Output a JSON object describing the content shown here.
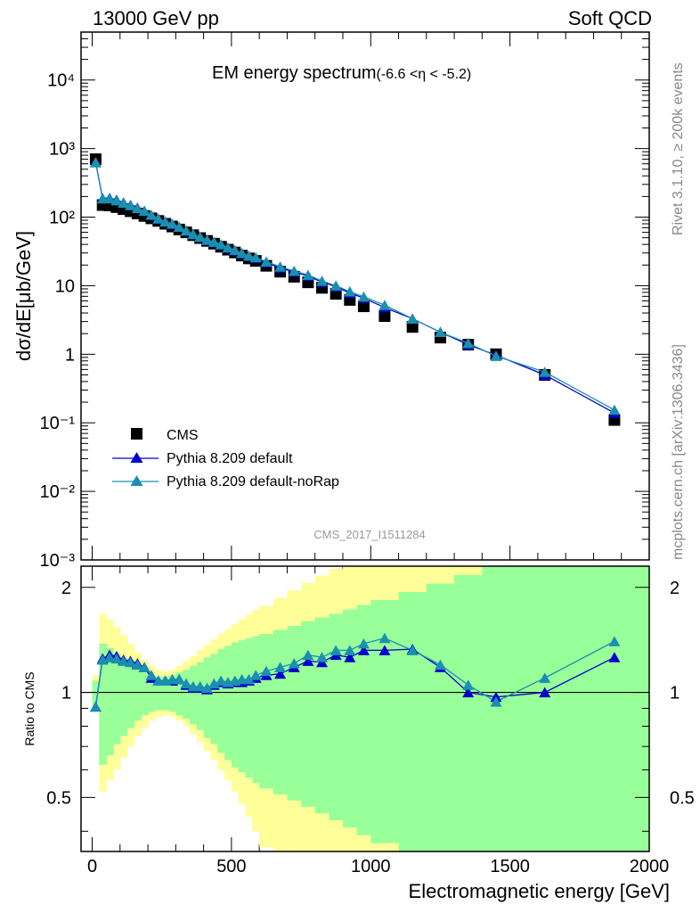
{
  "header": {
    "left": "13000 GeV pp",
    "right": "Soft QCD"
  },
  "side_labels": {
    "rivet": "Rivet 3.1.10, ≥ 200k events",
    "site": "mcplots.cern.ch [arXiv:1306.3436]"
  },
  "chart_data": {
    "type": "scatter",
    "title": "EM energy spectrum",
    "title_suffix": "(-6.6 <η < -5.2)",
    "analysis_id": "CMS_2017_I1511284",
    "xlabel": "Electromagnetic energy [GeV]",
    "ylabel": "dσ/dE[μb/GeV]",
    "ratio_ylabel": "Ratio to CMS",
    "xlim": [
      -40,
      2000
    ],
    "ylim": [
      0.001,
      50000
    ],
    "yscale": "log",
    "ratio_ylim": [
      0.35,
      2.3
    ],
    "x_ticks": [
      "0",
      "500",
      "1000",
      "1500",
      "2000"
    ],
    "y_ticks": [
      "10⁻³",
      "10⁻²",
      "10⁻¹",
      "1",
      "10",
      "10²",
      "10³",
      "10⁴"
    ],
    "ratio_ticks": [
      "0.5",
      "1",
      "2"
    ],
    "legend_position": "bottom-left",
    "colors": {
      "CMS": "#000000",
      "default": "#0000cc",
      "noRap": "#1a8fb0",
      "band_inner": "#99ff99",
      "band_outer": "#ffff99"
    },
    "series": [
      {
        "name": "CMS",
        "marker": "square",
        "x": [
          12.5,
          37.5,
          62.5,
          87.5,
          112.5,
          137.5,
          162.5,
          187.5,
          212.5,
          237.5,
          262.5,
          287.5,
          312.5,
          337.5,
          362.5,
          387.5,
          412.5,
          437.5,
          462.5,
          487.5,
          512.5,
          537.5,
          562.5,
          587.5,
          625,
          675,
          725,
          775,
          825,
          875,
          925,
          975,
          1050,
          1150,
          1250,
          1350,
          1450,
          1625,
          1875
        ],
        "y": [
          700,
          150,
          148,
          140,
          131,
          122,
          113,
          104,
          96,
          88,
          80,
          73,
          66,
          60,
          54.5,
          49.5,
          45,
          41,
          37,
          33.5,
          30.5,
          27.5,
          25,
          23,
          19.5,
          16,
          13.5,
          11.2,
          9.3,
          7.6,
          6.2,
          5.0,
          3.6,
          2.5,
          1.75,
          1.38,
          1.0,
          0.5,
          0.11
        ]
      },
      {
        "name": "Pythia 8.209 default",
        "marker": "triangle",
        "x": [
          12.5,
          37.5,
          62.5,
          87.5,
          112.5,
          137.5,
          162.5,
          187.5,
          212.5,
          237.5,
          262.5,
          287.5,
          312.5,
          337.5,
          362.5,
          387.5,
          412.5,
          437.5,
          462.5,
          487.5,
          512.5,
          537.5,
          562.5,
          587.5,
          625,
          675,
          725,
          775,
          825,
          875,
          925,
          975,
          1050,
          1150,
          1250,
          1350,
          1450,
          1625,
          1875
        ],
        "y": [
          630,
          188,
          190,
          178,
          163,
          150,
          137,
          123,
          106,
          95,
          86,
          79,
          72,
          63,
          56,
          51,
          46,
          43,
          39.5,
          35.5,
          32.5,
          29.5,
          27.0,
          25.3,
          21.8,
          18.1,
          15.9,
          13.8,
          11.3,
          9.7,
          7.8,
          6.6,
          4.8,
          3.3,
          2.1,
          1.38,
          0.97,
          0.5,
          0.139
        ],
        "ratio": [
          0.91,
          1.25,
          1.28,
          1.27,
          1.24,
          1.23,
          1.21,
          1.18,
          1.1,
          1.08,
          1.08,
          1.08,
          1.09,
          1.05,
          1.03,
          1.03,
          1.02,
          1.05,
          1.07,
          1.06,
          1.07,
          1.07,
          1.08,
          1.1,
          1.12,
          1.13,
          1.18,
          1.23,
          1.22,
          1.28,
          1.26,
          1.32,
          1.32,
          1.33,
          1.18,
          1.0,
          0.97,
          1.0,
          1.26
        ]
      },
      {
        "name": "Pythia 8.209 default-noRap",
        "marker": "triangle",
        "x": [
          12.5,
          37.5,
          62.5,
          87.5,
          112.5,
          137.5,
          162.5,
          187.5,
          212.5,
          237.5,
          262.5,
          287.5,
          312.5,
          337.5,
          362.5,
          387.5,
          412.5,
          437.5,
          462.5,
          487.5,
          512.5,
          537.5,
          562.5,
          587.5,
          625,
          675,
          725,
          775,
          825,
          875,
          925,
          975,
          1050,
          1150,
          1250,
          1350,
          1450,
          1625,
          1875
        ],
        "y": [
          630,
          186,
          187,
          175,
          161,
          149,
          135,
          123,
          108,
          95,
          86,
          80,
          72,
          63.5,
          56.5,
          51.5,
          46.5,
          43.5,
          40,
          36,
          33,
          29.9,
          27.3,
          25.8,
          22.4,
          18.9,
          16.4,
          14.3,
          11.7,
          10.0,
          8.2,
          6.9,
          5.2,
          3.3,
          2.1,
          1.45,
          0.94,
          0.55,
          0.154
        ],
        "ratio": [
          0.91,
          1.24,
          1.26,
          1.25,
          1.23,
          1.22,
          1.2,
          1.18,
          1.12,
          1.08,
          1.08,
          1.09,
          1.09,
          1.06,
          1.04,
          1.04,
          1.03,
          1.06,
          1.08,
          1.07,
          1.08,
          1.09,
          1.09,
          1.12,
          1.15,
          1.18,
          1.21,
          1.28,
          1.26,
          1.32,
          1.32,
          1.38,
          1.43,
          1.32,
          1.2,
          1.05,
          0.94,
          1.1,
          1.4
        ]
      }
    ],
    "ratio_band": {
      "x_edges": [
        0,
        25,
        50,
        75,
        100,
        125,
        150,
        175,
        200,
        225,
        250,
        275,
        300,
        325,
        350,
        375,
        400,
        425,
        450,
        475,
        500,
        525,
        550,
        575,
        600,
        650,
        700,
        750,
        800,
        850,
        900,
        950,
        1000,
        1100,
        1200,
        1300,
        1400,
        1500,
        1750,
        2000
      ],
      "inner_low": [
        0.92,
        0.62,
        0.66,
        0.71,
        0.75,
        0.79,
        0.83,
        0.86,
        0.88,
        0.89,
        0.89,
        0.88,
        0.86,
        0.84,
        0.81,
        0.78,
        0.74,
        0.71,
        0.67,
        0.64,
        0.61,
        0.59,
        0.57,
        0.55,
        0.53,
        0.51,
        0.49,
        0.47,
        0.45,
        0.43,
        0.41,
        0.39,
        0.37,
        0.35,
        0.35,
        0.35,
        0.35,
        0.35,
        0.35
      ],
      "inner_high": [
        1.08,
        1.38,
        1.34,
        1.29,
        1.25,
        1.21,
        1.17,
        1.14,
        1.12,
        1.11,
        1.11,
        1.12,
        1.14,
        1.16,
        1.19,
        1.22,
        1.26,
        1.29,
        1.33,
        1.36,
        1.39,
        1.41,
        1.43,
        1.45,
        1.47,
        1.51,
        1.55,
        1.6,
        1.64,
        1.68,
        1.73,
        1.78,
        1.84,
        1.94,
        2.05,
        2.17,
        2.3,
        2.3,
        2.3
      ],
      "outer_low": [
        0.88,
        0.52,
        0.56,
        0.6,
        0.65,
        0.7,
        0.75,
        0.79,
        0.83,
        0.85,
        0.86,
        0.85,
        0.83,
        0.8,
        0.76,
        0.72,
        0.68,
        0.64,
        0.6,
        0.56,
        0.52,
        0.48,
        0.44,
        0.4,
        0.36,
        0.35,
        0.35,
        0.35,
        0.35,
        0.35,
        0.35,
        0.35,
        0.35,
        0.35,
        0.35,
        0.35,
        0.35,
        0.35,
        0.35
      ],
      "outer_high": [
        1.12,
        1.68,
        1.62,
        1.54,
        1.46,
        1.38,
        1.3,
        1.24,
        1.19,
        1.16,
        1.15,
        1.16,
        1.19,
        1.23,
        1.27,
        1.32,
        1.37,
        1.42,
        1.47,
        1.52,
        1.57,
        1.62,
        1.67,
        1.72,
        1.77,
        1.86,
        1.96,
        2.06,
        2.16,
        2.26,
        2.3,
        2.3,
        2.3,
        2.3,
        2.3,
        2.3,
        2.3,
        2.3,
        2.3
      ]
    }
  }
}
